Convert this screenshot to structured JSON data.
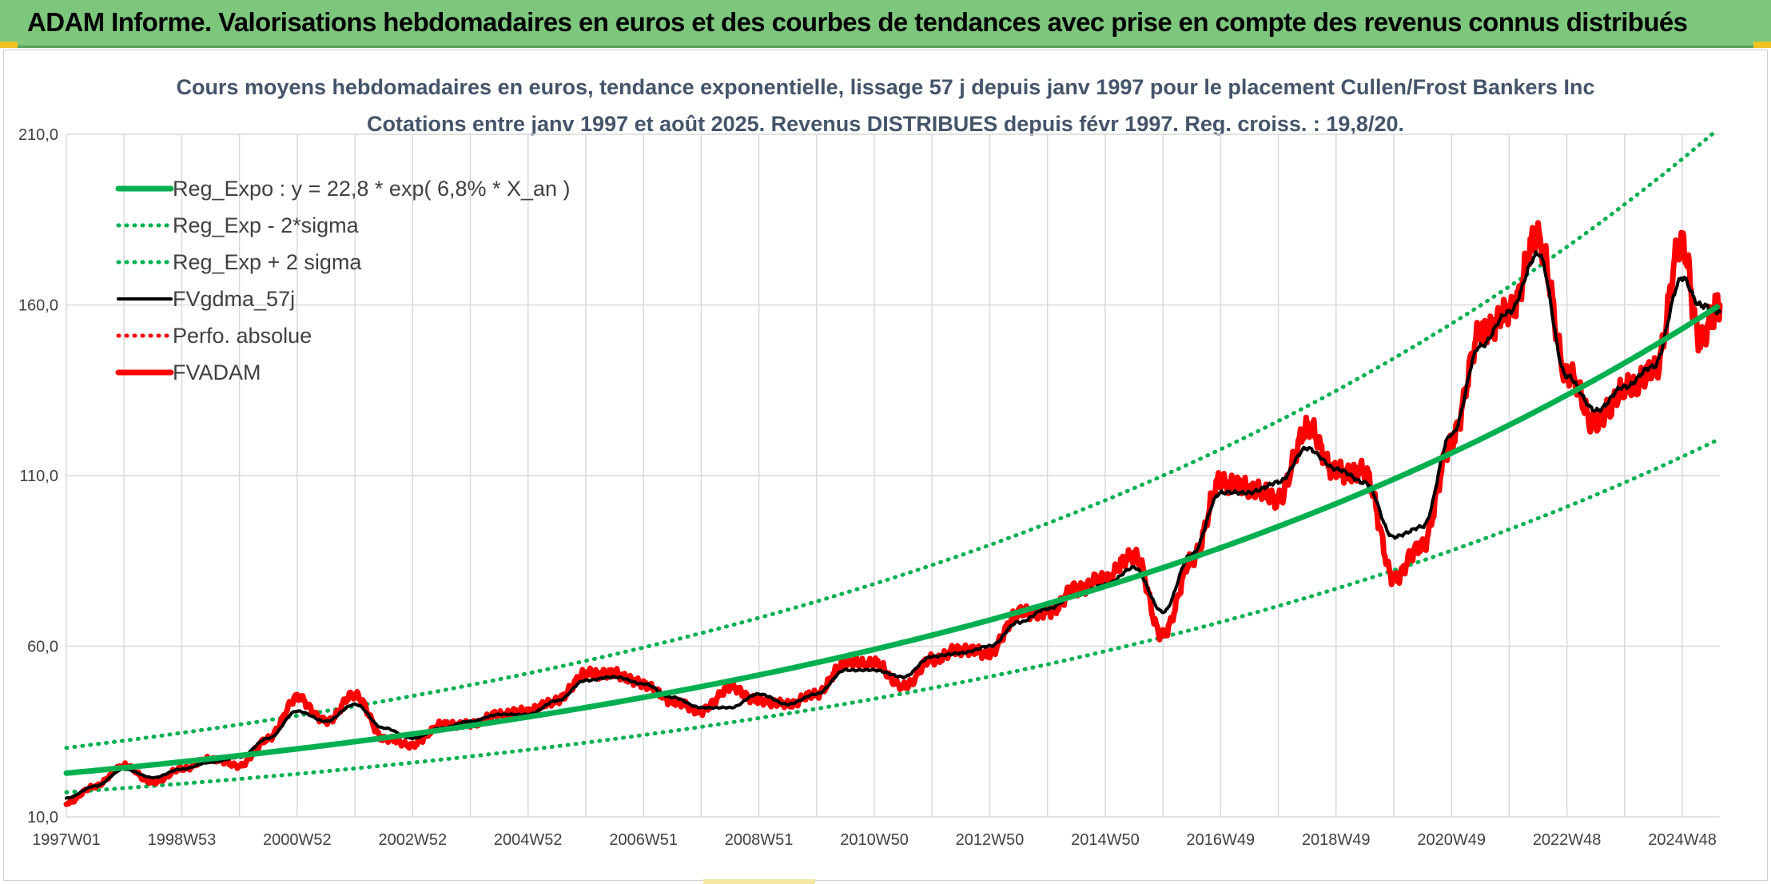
{
  "header": {
    "title": "ADAM Informe. Valorisations hebdomadaires en euros et des courbes de tendances avec prise en compte des revenus connus distribués"
  },
  "colors": {
    "banner": "#7dc77d",
    "green": "#00b050",
    "red": "#ff0000",
    "black": "#000000",
    "grid": "#d9d9d9"
  },
  "chart_data": {
    "type": "line",
    "title": "Cours moyens hebdomadaires en euros, tendance exponentielle, lissage 57 j depuis janv 1997 pour le placement Cullen/Frost Bankers Inc",
    "subtitle": "Cotations entre janv 1997 et août 2025. Revenus DISTRIBUES depuis févr 1997. Reg. croiss. : 19,8/20.",
    "xlabel": "",
    "ylabel": "",
    "xlim": [
      1997.0,
      2025.65
    ],
    "ylim": [
      10,
      210
    ],
    "y_ticks": [
      "10,0",
      "60,0",
      "110,0",
      "160,0",
      "210,0"
    ],
    "y_tick_values": [
      10,
      60,
      110,
      160,
      210
    ],
    "x_ticks": [
      "1997W01",
      "1998W53",
      "2000W52",
      "2002W52",
      "2004W52",
      "2006W51",
      "2008W51",
      "2010W50",
      "2012W50",
      "2014W50",
      "2016W49",
      "2018W49",
      "2020W49",
      "2022W48",
      "2024W48"
    ],
    "x_tick_values": [
      1997.0,
      1999.0,
      2001.0,
      2003.0,
      2005.0,
      2007.0,
      2009.0,
      2011.0,
      2013.0,
      2015.0,
      2017.0,
      2019.0,
      2021.0,
      2023.0,
      2025.0
    ],
    "grid": true,
    "legend_position": "top-left",
    "regression": {
      "a": 22.8,
      "rate": 0.068
    },
    "series": [
      {
        "name": "Reg_Expo : y = 22,8 * exp( 6,8% *  X_an )",
        "style": "solid-thick",
        "color": "#00b050",
        "x": [
          1997,
          1999,
          2001,
          2003,
          2005,
          2007,
          2009,
          2011,
          2013,
          2015,
          2017,
          2019,
          2021,
          2023,
          2025,
          2025.65
        ],
        "y": [
          22.8,
          26.1,
          29.8,
          34.1,
          39.0,
          44.6,
          51.0,
          58.3,
          66.6,
          76.1,
          87.0,
          99.5,
          113.7,
          130.0,
          148.6,
          155.3
        ]
      },
      {
        "name": "Reg_Exp - 2*sigma",
        "style": "dotted",
        "color": "#00b050",
        "x": [
          1997,
          1999,
          2001,
          2003,
          2005,
          2007,
          2009,
          2011,
          2013,
          2015,
          2017,
          2019,
          2021,
          2023,
          2025,
          2025.65
        ],
        "y": [
          17.2,
          19.7,
          22.5,
          25.7,
          29.4,
          33.6,
          38.4,
          43.9,
          50.2,
          57.3,
          65.5,
          74.9,
          85.6,
          97.8,
          111.8,
          116.9
        ]
      },
      {
        "name": "Reg_Exp + 2 sigma",
        "style": "dotted",
        "color": "#00b050",
        "x": [
          1997,
          1999,
          2001,
          2003,
          2005,
          2007,
          2009,
          2011,
          2013,
          2015,
          2017,
          2019,
          2021,
          2023,
          2025,
          2025.65
        ],
        "y": [
          30.2,
          34.5,
          39.5,
          45.1,
          51.6,
          59.0,
          67.4,
          77.1,
          88.1,
          100.7,
          115.1,
          131.6,
          150.4,
          172.0,
          196.6,
          205.4
        ]
      },
      {
        "name": "FVgdma_57j",
        "style": "solid",
        "color": "#000000",
        "x": [
          1997.0,
          1997.5,
          1998.0,
          1998.5,
          1999.0,
          1999.5,
          2000.0,
          2000.5,
          2001.0,
          2001.5,
          2002.0,
          2002.5,
          2003.0,
          2003.5,
          2004.0,
          2004.5,
          2005.0,
          2005.5,
          2006.0,
          2006.5,
          2007.0,
          2007.5,
          2008.0,
          2008.5,
          2009.0,
          2009.5,
          2010.0,
          2010.5,
          2011.0,
          2011.5,
          2012.0,
          2012.5,
          2013.0,
          2013.5,
          2014.0,
          2014.5,
          2015.0,
          2015.5,
          2016.0,
          2016.5,
          2017.0,
          2017.5,
          2018.0,
          2018.5,
          2019.0,
          2019.5,
          2020.0,
          2020.5,
          2021.0,
          2021.5,
          2022.0,
          2022.5,
          2023.0,
          2023.5,
          2024.0,
          2024.5,
          2025.0,
          2025.3,
          2025.65
        ],
        "y": [
          15.5,
          19.0,
          24.0,
          21.5,
          24.0,
          26.0,
          27.5,
          33.0,
          41.0,
          38.0,
          43.0,
          36.0,
          33.0,
          36.0,
          38.0,
          40.0,
          40.0,
          44.0,
          50.0,
          51.0,
          49.0,
          45.0,
          42.0,
          42.0,
          46.0,
          43.0,
          46.0,
          53.0,
          53.0,
          51.0,
          57.0,
          58.0,
          60.0,
          67.0,
          71.0,
          75.0,
          78.0,
          83.0,
          70.0,
          87.0,
          105.0,
          105.0,
          108.0,
          118.0,
          112.0,
          108.0,
          92.0,
          95.0,
          122.0,
          148.0,
          158.0,
          175.0,
          139.0,
          129.0,
          136.0,
          142.0,
          168.0,
          160.0,
          158.0
        ]
      },
      {
        "name": "Perfo. absolue",
        "style": "dotted",
        "color": "#ff0000",
        "x": [
          1997.0,
          1997.5,
          1998.0,
          1998.5,
          1999.0,
          1999.5,
          2000.0,
          2000.5,
          2001.0,
          2001.5,
          2002.0,
          2002.5,
          2003.0,
          2003.5,
          2004.0,
          2004.5,
          2005.0,
          2005.5,
          2006.0,
          2006.5,
          2007.0,
          2007.5,
          2008.0,
          2008.5,
          2009.0,
          2009.5,
          2010.0,
          2010.5,
          2011.0,
          2011.5,
          2012.0,
          2012.5,
          2013.0,
          2013.5,
          2014.0,
          2014.5,
          2015.0,
          2015.5,
          2016.0,
          2016.5,
          2017.0,
          2017.5,
          2018.0,
          2018.5,
          2019.0,
          2019.5,
          2020.0,
          2020.5,
          2021.0,
          2021.5,
          2022.0,
          2022.5,
          2023.0,
          2023.5,
          2024.0,
          2024.5,
          2025.0,
          2025.3,
          2025.65
        ],
        "y": [
          14.0,
          19.0,
          25.0,
          20.0,
          24.0,
          27.0,
          25.0,
          33.0,
          45.0,
          38.0,
          46.0,
          33.0,
          31.0,
          37.0,
          37.0,
          40.0,
          41.0,
          44.0,
          52.0,
          52.0,
          49.0,
          44.0,
          41.0,
          48.0,
          44.0,
          43.0,
          46.0,
          55.0,
          55.0,
          48.0,
          56.0,
          59.0,
          58.0,
          70.0,
          70.0,
          77.0,
          80.0,
          87.0,
          63.0,
          85.0,
          108.0,
          106.0,
          103.0,
          124.0,
          111.0,
          111.0,
          80.0,
          90.0,
          120.0,
          152.0,
          158.0,
          180.0,
          140.0,
          125.0,
          135.0,
          140.0,
          178.0,
          150.0,
          160.0
        ]
      },
      {
        "name": "FVADAM",
        "style": "solid-thick",
        "color": "#ff0000",
        "x": [
          1997.0,
          1997.5,
          1998.0,
          1998.5,
          1999.0,
          1999.5,
          2000.0,
          2000.5,
          2001.0,
          2001.5,
          2002.0,
          2002.5,
          2003.0,
          2003.5,
          2004.0,
          2004.5,
          2005.0,
          2005.5,
          2006.0,
          2006.5,
          2007.0,
          2007.5,
          2008.0,
          2008.5,
          2009.0,
          2009.5,
          2010.0,
          2010.5,
          2011.0,
          2011.5,
          2012.0,
          2012.5,
          2013.0,
          2013.5,
          2014.0,
          2014.5,
          2015.0,
          2015.5,
          2016.0,
          2016.5,
          2017.0,
          2017.5,
          2018.0,
          2018.5,
          2019.0,
          2019.5,
          2020.0,
          2020.5,
          2021.0,
          2021.5,
          2022.0,
          2022.5,
          2023.0,
          2023.5,
          2024.0,
          2024.5,
          2025.0,
          2025.3,
          2025.65
        ],
        "y": [
          14.0,
          19.0,
          25.0,
          20.0,
          24.0,
          27.0,
          25.0,
          33.0,
          45.0,
          38.0,
          46.0,
          33.0,
          31.0,
          37.0,
          37.0,
          40.0,
          41.0,
          44.0,
          52.0,
          52.0,
          49.0,
          44.0,
          41.0,
          48.0,
          44.0,
          43.0,
          46.0,
          55.0,
          55.0,
          48.0,
          56.0,
          59.0,
          58.0,
          70.0,
          70.0,
          77.0,
          80.0,
          87.0,
          63.0,
          85.0,
          108.0,
          106.0,
          103.0,
          124.0,
          111.0,
          111.0,
          80.0,
          90.0,
          120.0,
          152.0,
          158.0,
          180.0,
          140.0,
          125.0,
          135.0,
          140.0,
          178.0,
          150.0,
          160.0
        ]
      }
    ]
  }
}
